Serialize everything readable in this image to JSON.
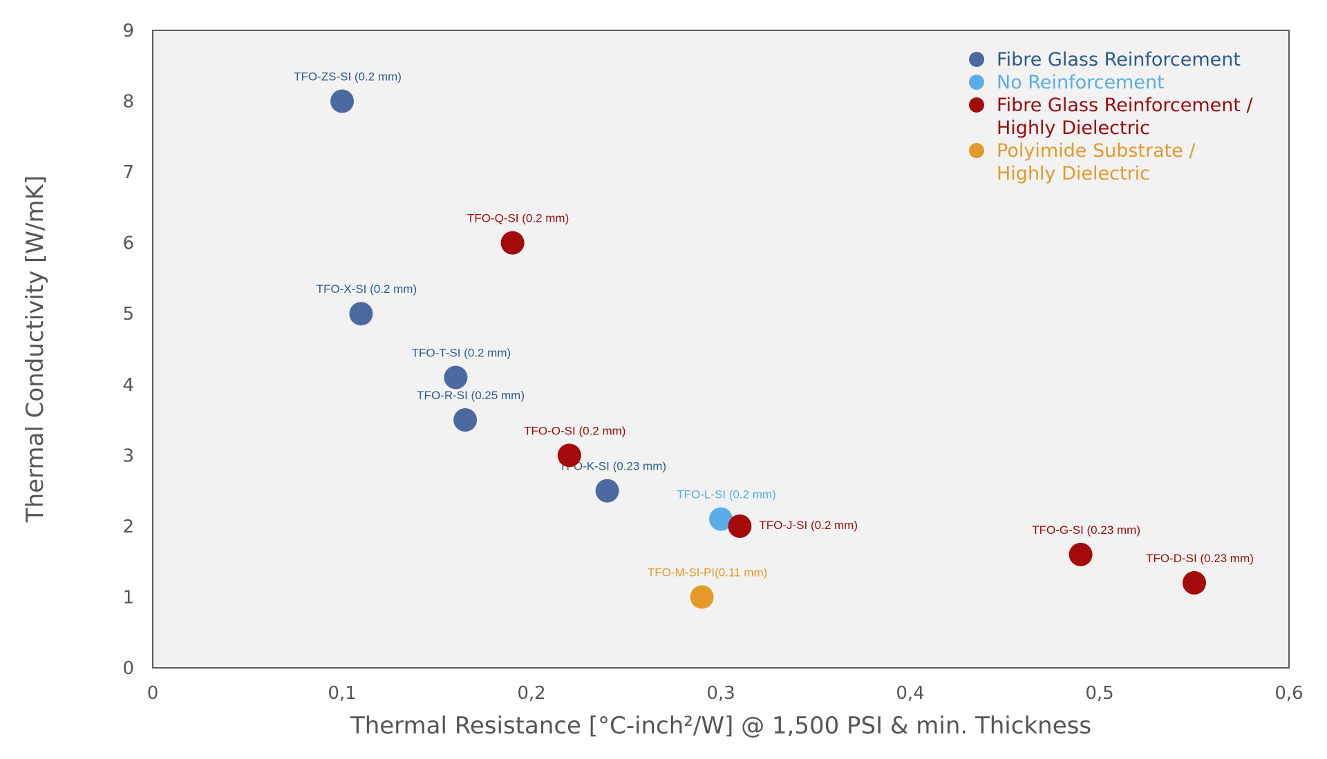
{
  "chart_data": {
    "type": "scatter",
    "title": "",
    "xlabel": "Thermal Resistance [°C-inch²/W] @ 1,500 PSI & min. Thickness",
    "ylabel": "Thermal Conductivity [W/mK]",
    "xlim": [
      0,
      0.6
    ],
    "ylim": [
      0,
      9
    ],
    "x_ticks": [
      "0",
      "0,1",
      "0,2",
      "0,3",
      "0,4",
      "0,5",
      "0,6"
    ],
    "y_ticks": [
      "0",
      "1",
      "2",
      "3",
      "4",
      "5",
      "6",
      "7",
      "8",
      "9"
    ],
    "grid": false,
    "legend_position": "top-right",
    "series": [
      {
        "name": "Fibre Glass Reinforcement",
        "color": "#4a6aa0",
        "label_color": "#2c5a8e",
        "points": [
          {
            "x": 0.1,
            "y": 8.0,
            "label": "TFO-ZS-SI (0.2 mm)"
          },
          {
            "x": 0.11,
            "y": 5.0,
            "label": "TFO-X-SI (0.2 mm)"
          },
          {
            "x": 0.16,
            "y": 4.1,
            "label": "TFO-T-SI (0.2 mm)"
          },
          {
            "x": 0.165,
            "y": 3.5,
            "label": "TFO-R-SI (0.25 mm)"
          },
          {
            "x": 0.24,
            "y": 2.5,
            "label": "TFO-K-SI (0.23 mm)"
          }
        ]
      },
      {
        "name": "No Reinforcement",
        "color": "#5aade8",
        "label_color": "#5aade8",
        "points": [
          {
            "x": 0.3,
            "y": 2.1,
            "label": "TFO-L-SI (0.2 mm)"
          }
        ]
      },
      {
        "name": "Fibre Glass Reinforcement / Highly Dielectric",
        "legend_lines": [
          "Fibre Glass Reinforcement /",
          "Highly Dielectric"
        ],
        "color": "#a50a0a",
        "label_color": "#9b0a0a",
        "points": [
          {
            "x": 0.19,
            "y": 6.0,
            "label": "TFO-Q-SI (0.2 mm)"
          },
          {
            "x": 0.22,
            "y": 3.0,
            "label": "TFO-O-SI (0.2 mm)"
          },
          {
            "x": 0.31,
            "y": 2.0,
            "label": "TFO-J-SI (0.2 mm)"
          },
          {
            "x": 0.49,
            "y": 1.6,
            "label": "TFO-G-SI (0.23 mm)"
          },
          {
            "x": 0.55,
            "y": 1.2,
            "label": "TFO-D-SI (0.23 mm)"
          }
        ]
      },
      {
        "name": "Polyimide Substrate / Highly Dielectric",
        "legend_lines": [
          "Polyimide Substrate /",
          "Highly Dielectric"
        ],
        "color": "#e39a2a",
        "label_color": "#e39a2a",
        "points": [
          {
            "x": 0.29,
            "y": 1.0,
            "label": "TFO-M-SI-PI(0.11 mm)"
          }
        ]
      }
    ]
  }
}
